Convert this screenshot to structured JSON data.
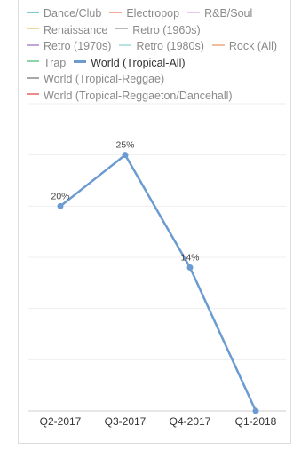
{
  "legend": [
    {
      "name": "Dance/Club",
      "color": "#7fc6d6",
      "active": false
    },
    {
      "name": "Electropop",
      "color": "#f2a99a",
      "active": false
    },
    {
      "name": "R&B/Soul",
      "color": "#e8c7ef",
      "active": false
    },
    {
      "name": "Renaissance",
      "color": "#ead99a",
      "active": false
    },
    {
      "name": "Retro (1960s)",
      "color": "#b8b8b8",
      "active": false
    },
    {
      "name": "Retro (1970s)",
      "color": "#c3a6d9",
      "active": false
    },
    {
      "name": "Retro (1980s)",
      "color": "#b7e3e3",
      "active": false
    },
    {
      "name": "Rock (All)",
      "color": "#f2bd9c",
      "active": false
    },
    {
      "name": "Trap",
      "color": "#8fd3a8",
      "active": false
    },
    {
      "name": "World (Tropical-All)",
      "color": "#6b9bd1",
      "active": true
    },
    {
      "name": "World (Tropical-Reggae)",
      "color": "#a8a8a8",
      "active": false
    },
    {
      "name": "World (Tropical-Reggaeton/Dancehall)",
      "color": "#f08a8a",
      "active": false
    }
  ],
  "chart_data": {
    "type": "line",
    "categories": [
      "Q2-2017",
      "Q3-2017",
      "Q4-2017",
      "Q1-2018"
    ],
    "series": [
      {
        "name": "World (Tropical-All)",
        "values": [
          20,
          25,
          14,
          0
        ],
        "labels": [
          "20%",
          "25%",
          "14%",
          ""
        ],
        "color": "#6b9bd1"
      }
    ],
    "ylim": [
      0,
      30
    ],
    "grid": true,
    "legend_position": "top"
  }
}
